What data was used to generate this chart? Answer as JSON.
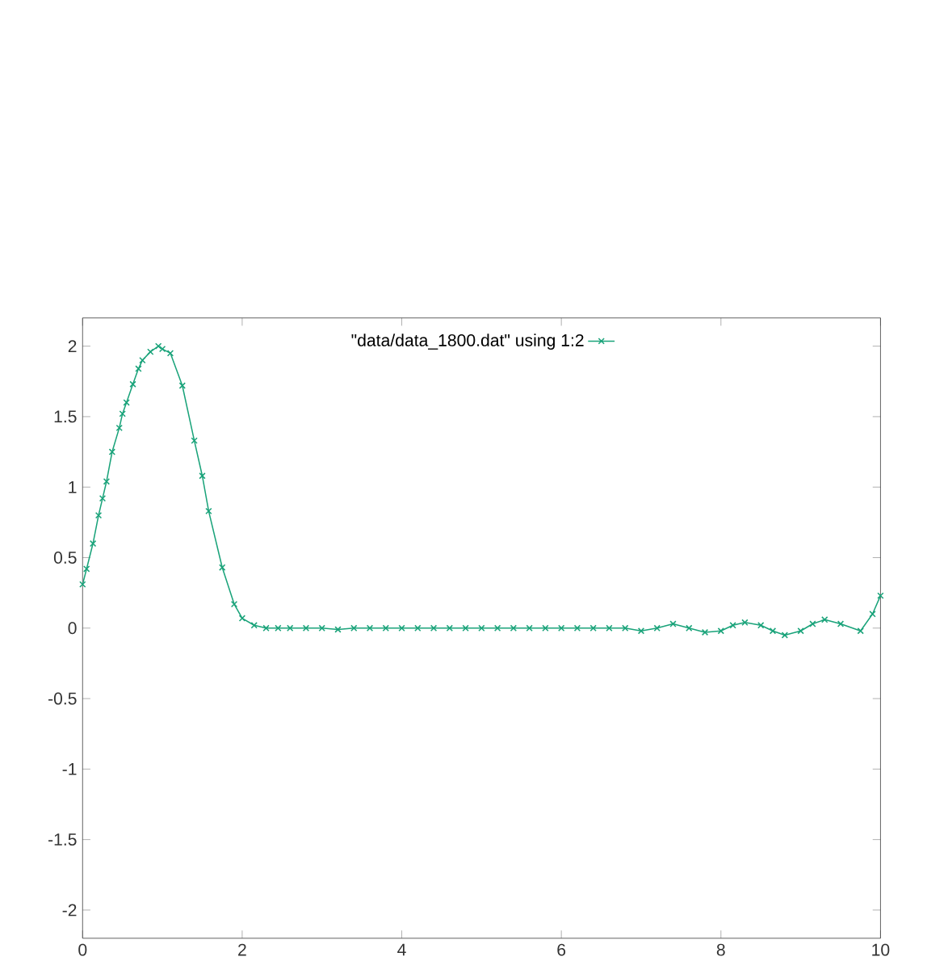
{
  "chart_data": {
    "type": "line",
    "xlim": [
      0,
      10
    ],
    "ylim": [
      -2.2,
      2.2
    ],
    "xticks": [
      0,
      2,
      4,
      6,
      8,
      10
    ],
    "yticks": [
      -2,
      -1.5,
      -1,
      -0.5,
      0,
      0.5,
      1,
      1.5,
      2
    ],
    "grid": false,
    "legend": "top",
    "marker": "cross",
    "line_style": "solid",
    "series": [
      {
        "name": "\"data/data_1800.dat\" using 1:2",
        "color": "#1aa37a",
        "x": [
          0,
          0.05,
          0.13,
          0.2,
          0.25,
          0.3,
          0.37,
          0.46,
          0.5,
          0.55,
          0.63,
          0.7,
          0.75,
          0.85,
          0.95,
          1.0,
          1.1,
          1.25,
          1.4,
          1.5,
          1.58,
          1.75,
          1.9,
          2.0,
          2.15,
          2.3,
          2.45,
          2.6,
          2.8,
          3.0,
          3.2,
          3.4,
          3.6,
          3.8,
          4.0,
          4.2,
          4.4,
          4.6,
          4.8,
          5.0,
          5.2,
          5.4,
          5.6,
          5.8,
          6.0,
          6.2,
          6.4,
          6.6,
          6.8,
          7.0,
          7.2,
          7.4,
          7.6,
          7.8,
          8.0,
          8.15,
          8.3,
          8.5,
          8.65,
          8.8,
          9.0,
          9.15,
          9.3,
          9.5,
          9.75,
          9.9,
          10.0
        ],
        "values": [
          0.31,
          0.42,
          0.6,
          0.8,
          0.92,
          1.04,
          1.25,
          1.42,
          1.52,
          1.6,
          1.73,
          1.84,
          1.9,
          1.96,
          2.0,
          1.98,
          1.95,
          1.72,
          1.33,
          1.08,
          0.83,
          0.43,
          0.17,
          0.07,
          0.02,
          0,
          0,
          0,
          0,
          0,
          -0.01,
          0,
          0,
          0,
          0,
          0,
          0,
          0,
          0,
          0,
          0,
          0,
          0,
          0,
          0,
          0,
          0,
          0,
          0,
          -0.02,
          0,
          0.03,
          0,
          -0.03,
          -0.02,
          0.02,
          0.04,
          0.02,
          -0.02,
          -0.05,
          -0.02,
          0.03,
          0.06,
          0.03,
          -0.02,
          0.1,
          0.23
        ]
      }
    ]
  }
}
